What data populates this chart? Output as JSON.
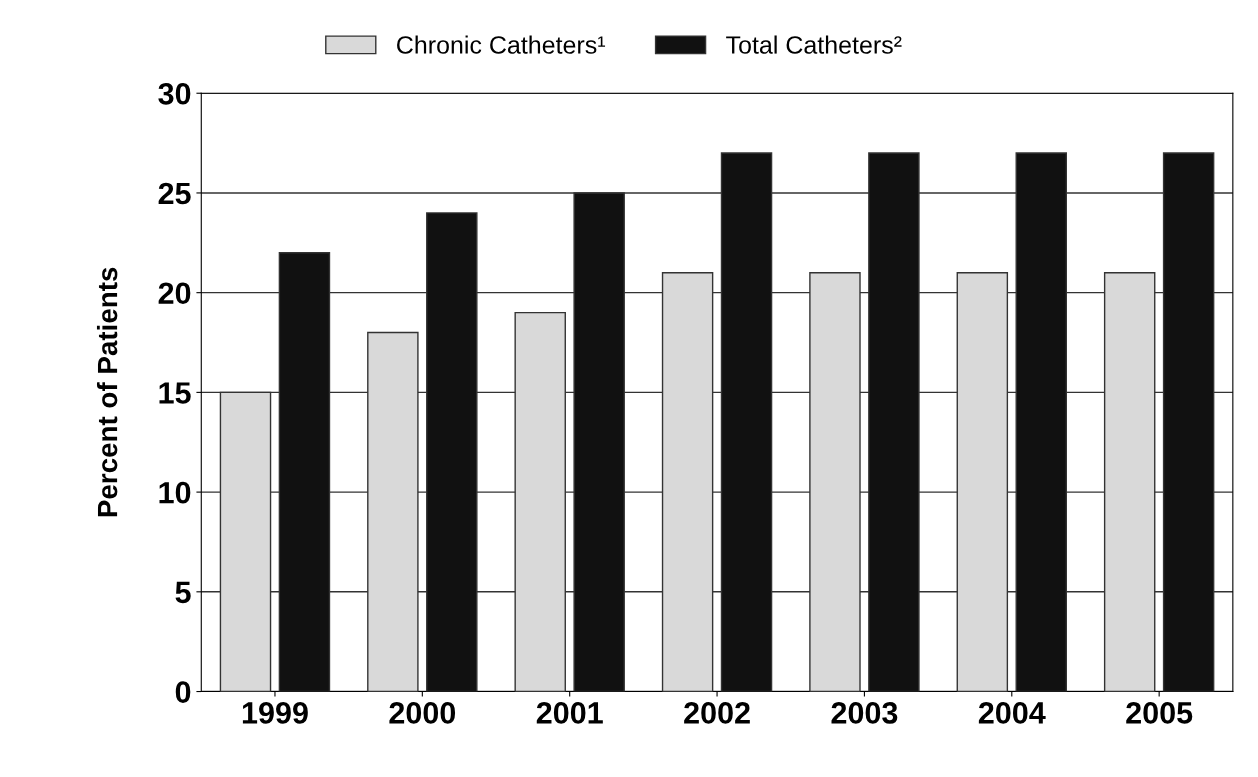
{
  "chart_data": {
    "type": "bar",
    "ylabel": "Percent of Patients",
    "categories": [
      "1999",
      "2000",
      "2001",
      "2002",
      "2003",
      "2004",
      "2005"
    ],
    "series": [
      {
        "name": "Chronic Catheters¹",
        "color": "#d9d9d9",
        "values": [
          15,
          18,
          19,
          21,
          21,
          21,
          21
        ]
      },
      {
        "name": "Total Catheters²",
        "color": "#111111",
        "values": [
          22,
          24,
          25,
          27,
          27,
          27,
          27
        ]
      }
    ],
    "ylim": [
      0,
      30
    ],
    "yticks": [
      0,
      5,
      10,
      15,
      20,
      25,
      30
    ],
    "grid": "y",
    "legend": "top"
  }
}
